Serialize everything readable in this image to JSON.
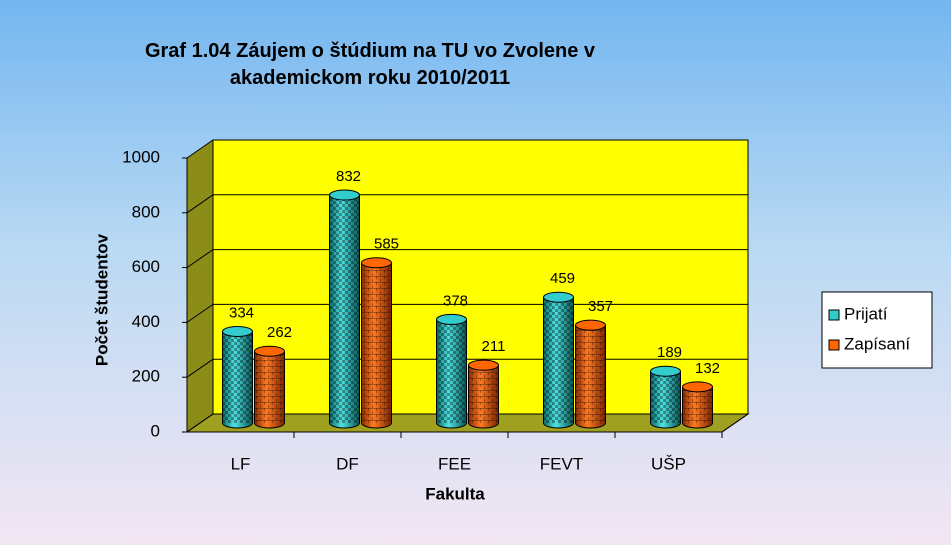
{
  "chart_data": {
    "type": "bar3d",
    "title": "Graf 1.04 Záujem o štúdium na TU vo Zvolene v akademickom roku 2010/2011",
    "x_label": "Fakulta",
    "y_label": "Počet študentov",
    "categories": [
      "LF",
      "DF",
      "FEE",
      "FEVT",
      "UŠP"
    ],
    "series": [
      {
        "name": "Prijatí",
        "color": "#33cccc",
        "values": [
          334,
          832,
          378,
          459,
          189
        ]
      },
      {
        "name": "Zapísaní",
        "color": "#ff6600",
        "values": [
          262,
          585,
          211,
          357,
          132
        ]
      }
    ],
    "ylim": [
      0,
      1000
    ],
    "yticks": [
      0,
      200,
      400,
      600,
      800,
      1000
    ],
    "grid": true,
    "legend": "right"
  }
}
